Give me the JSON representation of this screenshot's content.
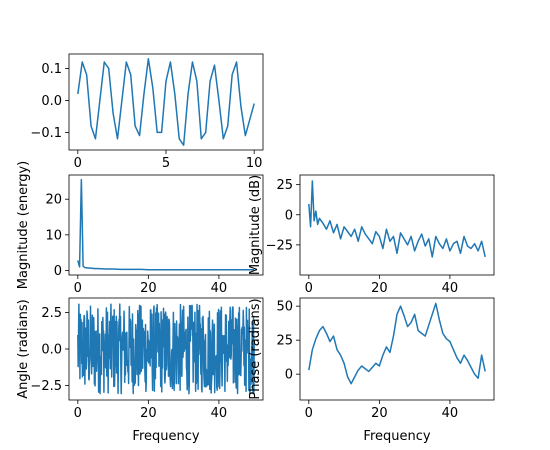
{
  "chart_data": [
    {
      "type": "line",
      "title": "",
      "xlabel": "",
      "ylabel": "",
      "xlim": [
        -0.5,
        10.5
      ],
      "ylim": [
        -0.155,
        0.145
      ],
      "x_ticks": [
        0,
        5,
        10
      ],
      "x_tick_labels": [
        "0",
        "5",
        "10"
      ],
      "y_ticks": [
        -0.1,
        0.0,
        0.1
      ],
      "y_tick_labels": [
        "−0.1",
        "0.0",
        "0.1"
      ],
      "series": [
        {
          "color": "#1f77b4",
          "x": [
            0,
            0.25,
            0.5,
            0.75,
            1,
            1.25,
            1.5,
            1.75,
            2,
            2.25,
            2.5,
            2.75,
            3,
            3.25,
            3.5,
            3.75,
            4,
            4.25,
            4.5,
            4.75,
            5,
            5.25,
            5.5,
            5.75,
            6,
            6.25,
            6.5,
            6.75,
            7,
            7.25,
            7.5,
            7.75,
            8,
            8.25,
            8.5,
            8.75,
            9,
            9.25,
            9.5,
            9.75,
            10
          ],
          "y": [
            0.02,
            0.12,
            0.08,
            -0.08,
            -0.12,
            0.0,
            0.12,
            0.1,
            -0.04,
            -0.12,
            0.0,
            0.12,
            0.08,
            -0.08,
            -0.11,
            0.02,
            0.13,
            0.04,
            -0.1,
            -0.1,
            0.06,
            0.12,
            0.02,
            -0.12,
            -0.14,
            0.02,
            0.12,
            0.06,
            -0.12,
            -0.1,
            0.06,
            0.11,
            0.0,
            -0.12,
            -0.08,
            0.08,
            0.12,
            -0.02,
            -0.11,
            -0.06,
            -0.01
          ]
        }
      ]
    },
    {
      "type": "line",
      "title": "",
      "xlabel": "",
      "ylabel": "Magnitude (energy)",
      "xlim": [
        -2.5,
        52.5
      ],
      "ylim": [
        -1.28,
        26.8
      ],
      "x_ticks": [
        0,
        20,
        40
      ],
      "x_tick_labels": [
        "0",
        "20",
        "40"
      ],
      "y_ticks": [
        0,
        10,
        20
      ],
      "y_tick_labels": [
        "0",
        "10",
        "20"
      ],
      "series": [
        {
          "color": "#1f77b4",
          "x": [
            0,
            0.5,
            1,
            1.5,
            2,
            3,
            4,
            5,
            6,
            8,
            10,
            12,
            15,
            18,
            20,
            24,
            28,
            32,
            36,
            40,
            44,
            48,
            50
          ],
          "y": [
            2.8,
            1.0,
            25.5,
            1.2,
            0.8,
            0.7,
            0.6,
            0.5,
            0.5,
            0.4,
            0.4,
            0.3,
            0.3,
            0.3,
            0.2,
            0.2,
            0.2,
            0.2,
            0.2,
            0.2,
            0.2,
            0.2,
            0.2
          ]
        }
      ]
    },
    {
      "type": "line",
      "title": "",
      "xlabel": "",
      "ylabel": "Magnitude (dB)",
      "xlim": [
        -2.5,
        52.5
      ],
      "ylim": [
        -50,
        33
      ],
      "x_ticks": [
        0,
        20,
        40
      ],
      "x_tick_labels": [
        "0",
        "20",
        "40"
      ],
      "y_ticks": [
        -25,
        0,
        25
      ],
      "y_tick_labels": [
        "−25",
        "0",
        "25"
      ],
      "series": [
        {
          "color": "#1f77b4",
          "x": [
            0,
            0.5,
            1,
            1.5,
            2,
            2.5,
            3,
            4,
            5,
            6,
            7,
            8,
            9,
            10,
            11,
            12,
            13,
            14,
            15,
            16,
            17,
            18,
            19,
            20,
            21,
            22,
            23,
            24,
            25,
            26,
            27,
            28,
            29,
            30,
            31,
            32,
            33,
            34,
            35,
            36,
            37,
            38,
            39,
            40,
            41,
            42,
            43,
            44,
            45,
            46,
            47,
            48,
            49,
            50
          ],
          "y": [
            9,
            -10,
            28,
            -5,
            3,
            -8,
            -3,
            -7,
            -12,
            -5,
            -15,
            -8,
            -20,
            -10,
            -14,
            -18,
            -12,
            -22,
            -10,
            -16,
            -20,
            -24,
            -14,
            -18,
            -28,
            -12,
            -22,
            -18,
            -32,
            -15,
            -20,
            -25,
            -18,
            -30,
            -22,
            -16,
            -26,
            -20,
            -35,
            -18,
            -24,
            -28,
            -20,
            -30,
            -24,
            -22,
            -32,
            -18,
            -26,
            -28,
            -24,
            -30,
            -22,
            -35
          ]
        }
      ]
    },
    {
      "type": "line",
      "title": "",
      "xlabel": "Frequency",
      "ylabel": "Angle (radians)",
      "xlim": [
        -2.5,
        52.5
      ],
      "ylim": [
        -3.5,
        3.5
      ],
      "x_ticks": [
        0,
        20,
        40
      ],
      "x_tick_labels": [
        "0",
        "20",
        "40"
      ],
      "y_ticks": [
        -2.5,
        0.0,
        2.5
      ],
      "y_tick_labels": [
        "−2.5",
        "0.0",
        "2.5"
      ],
      "series": [
        {
          "color": "#1f77b4",
          "x": [],
          "y": []
        }
      ]
    },
    {
      "type": "line",
      "title": "",
      "xlabel": "Frequency",
      "ylabel": "Phase (radians)",
      "xlim": [
        -2.5,
        52.5
      ],
      "ylim": [
        -19,
        56
      ],
      "x_ticks": [
        0,
        20,
        40
      ],
      "x_tick_labels": [
        "0",
        "20",
        "40"
      ],
      "y_ticks": [
        0,
        25,
        50
      ],
      "y_tick_labels": [
        "0",
        "25",
        "50"
      ],
      "series": [
        {
          "color": "#1f77b4",
          "x": [
            0,
            1,
            2,
            3,
            4,
            5,
            6,
            7,
            8,
            9,
            10,
            11,
            12,
            13,
            14,
            15,
            16,
            17,
            18,
            19,
            20,
            21,
            22,
            23,
            24,
            25,
            26,
            27,
            28,
            29,
            30,
            31,
            32,
            33,
            34,
            35,
            36,
            37,
            38,
            39,
            40,
            41,
            42,
            43,
            44,
            45,
            46,
            47,
            48,
            49,
            50
          ],
          "y": [
            3,
            18,
            26,
            32,
            35,
            30,
            24,
            28,
            18,
            14,
            8,
            -2,
            -7,
            -2,
            3,
            6,
            4,
            2,
            5,
            8,
            6,
            14,
            20,
            16,
            28,
            44,
            50,
            43,
            35,
            38,
            44,
            32,
            30,
            28,
            36,
            44,
            52,
            40,
            30,
            26,
            24,
            18,
            12,
            8,
            14,
            10,
            5,
            0,
            -3,
            14,
            2
          ]
        }
      ]
    }
  ]
}
